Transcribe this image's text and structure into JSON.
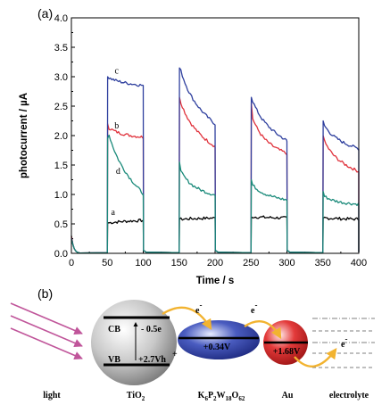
{
  "panel_a": "(a)",
  "panel_b": "(b)",
  "chart_data": {
    "type": "line",
    "xlabel": "Time / s",
    "ylabel": "photocurrent / µA",
    "xlim": [
      0,
      400
    ],
    "ylim": [
      0,
      4.0
    ],
    "xticks": [
      "0",
      "50",
      "100",
      "150",
      "200",
      "250",
      "300",
      "350",
      "400"
    ],
    "yticks": [
      "0.0",
      "0.5",
      "1.0",
      "1.5",
      "2.0",
      "2.5",
      "3.0",
      "3.5",
      "4.0"
    ],
    "grid": false,
    "on_off_cycles": [
      [
        50,
        100
      ],
      [
        150,
        200
      ],
      [
        250,
        300
      ],
      [
        350,
        400
      ]
    ],
    "series": [
      {
        "name": "a",
        "color": "#000000",
        "on_levels": [
          [
            0.52,
            0.56
          ],
          [
            0.58,
            0.6
          ],
          [
            0.62,
            0.6
          ],
          [
            0.6,
            0.58
          ]
        ],
        "spike": [
          0.52,
          0.58,
          0.62,
          0.6
        ],
        "label_at": [
          58,
          0.65
        ]
      },
      {
        "name": "b",
        "color": "#e0323c",
        "on_levels": [
          [
            2.05,
            1.97
          ],
          [
            2.4,
            1.8
          ],
          [
            2.0,
            1.68
          ],
          [
            1.75,
            1.38
          ]
        ],
        "spike": [
          2.2,
          2.65,
          2.55,
          2.0
        ],
        "label_at": [
          63,
          2.12
        ]
      },
      {
        "name": "c",
        "color": "#2e3f9e",
        "on_levels": [
          [
            2.95,
            2.85
          ],
          [
            2.95,
            2.18
          ],
          [
            2.45,
            1.9
          ],
          [
            2.05,
            1.77
          ]
        ],
        "spike": [
          3.0,
          3.15,
          2.65,
          2.25
        ],
        "label_at": [
          63,
          3.05
        ]
      },
      {
        "name": "d",
        "color": "#1a8a7a",
        "on_levels": [
          [
            1.95,
            1.0
          ],
          [
            1.2,
            0.98
          ],
          [
            1.05,
            0.9
          ],
          [
            0.88,
            0.83
          ]
        ],
        "spike": [
          1.95,
          1.55,
          1.25,
          1.05
        ],
        "label_at": [
          65,
          1.35
        ]
      }
    ]
  },
  "diagram": {
    "cb": "CB",
    "vb": "VB",
    "cb_potential": "- 0.5e",
    "vb_potential": "+2.7Vh",
    "vb_plus": "+",
    "electron": "e",
    "minus": "-",
    "pom_potential": "+0.34V",
    "au_potential": "+1.68V",
    "labels": {
      "light": "light",
      "tio2": "TiO",
      "tio2_sub": "2",
      "pom": "K6P2W18O62",
      "au": "Au",
      "electrolyte": "electrolyte"
    },
    "colors": {
      "arrow_light": "#c0559a",
      "arrow_electron": "#f2b330",
      "tio2": "#a9a9a9",
      "pom": "#2c3a9a",
      "au": "#d8232a"
    }
  }
}
